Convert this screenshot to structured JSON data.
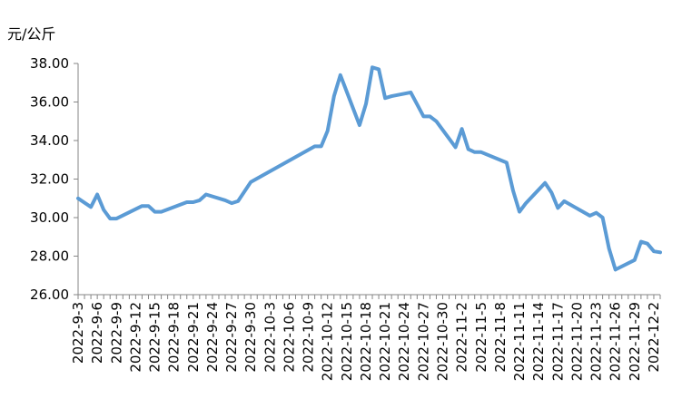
{
  "chart_data": {
    "type": "line",
    "ylabel": "元/公斤",
    "ylim": [
      26,
      38
    ],
    "yticks": [
      "26.00",
      "28.00",
      "30.00",
      "32.00",
      "34.00",
      "36.00",
      "38.00"
    ],
    "xticks": [
      "2022-9-3",
      "2022-9-6",
      "2022-9-9",
      "2022-9-12",
      "2022-9-15",
      "2022-9-18",
      "2022-9-21",
      "2022-9-24",
      "2022-9-27",
      "2022-9-30",
      "2022-10-3",
      "2022-10-6",
      "2022-10-9",
      "2022-10-12",
      "2022-10-15",
      "2022-10-18",
      "2022-10-21",
      "2022-10-24",
      "2022-10-27",
      "2022-10-30",
      "2022-11-2",
      "2022-11-5",
      "2022-11-8",
      "2022-11-11",
      "2022-11-14",
      "2022-11-17",
      "2022-11-20",
      "2022-11-23",
      "2022-11-26",
      "2022-11-29",
      "2022-12-2"
    ],
    "x": [
      "2022-9-3",
      "2022-9-5",
      "2022-9-6",
      "2022-9-7",
      "2022-9-8",
      "2022-9-9",
      "2022-9-13",
      "2022-9-14",
      "2022-9-15",
      "2022-9-16",
      "2022-9-20",
      "2022-9-21",
      "2022-9-22",
      "2022-9-23",
      "2022-9-26",
      "2022-9-27",
      "2022-9-28",
      "2022-9-30",
      "2022-10-10",
      "2022-10-11",
      "2022-10-12",
      "2022-10-13",
      "2022-10-14",
      "2022-10-17",
      "2022-10-18",
      "2022-10-19",
      "2022-10-20",
      "2022-10-21",
      "2022-10-22",
      "2022-10-25",
      "2022-10-27",
      "2022-10-28",
      "2022-10-29",
      "2022-11-1",
      "2022-11-2",
      "2022-11-3",
      "2022-11-4",
      "2022-11-5",
      "2022-11-9",
      "2022-11-10",
      "2022-11-11",
      "2022-11-12",
      "2022-11-15",
      "2022-11-16",
      "2022-11-17",
      "2022-11-18",
      "2022-11-22",
      "2022-11-23",
      "2022-11-24",
      "2022-11-25",
      "2022-11-26",
      "2022-11-29",
      "2022-11-30",
      "2022-12-1",
      "2022-12-2",
      "2022-12-3"
    ],
    "values": [
      31.0,
      30.55,
      31.2,
      30.4,
      29.95,
      29.95,
      30.6,
      30.6,
      30.3,
      30.3,
      30.8,
      30.8,
      30.9,
      31.2,
      30.9,
      30.75,
      30.85,
      31.85,
      33.7,
      33.7,
      34.5,
      36.3,
      37.4,
      34.8,
      35.9,
      37.8,
      37.7,
      36.2,
      36.3,
      36.5,
      35.25,
      35.25,
      35.0,
      33.65,
      34.6,
      33.55,
      33.4,
      33.4,
      32.85,
      31.4,
      30.3,
      30.75,
      31.8,
      31.3,
      30.5,
      30.85,
      30.1,
      30.25,
      30.0,
      28.4,
      27.3,
      27.8,
      28.75,
      28.65,
      28.25,
      28.2
    ],
    "color": "#5B9BD5",
    "grid": false,
    "legend": "none"
  }
}
